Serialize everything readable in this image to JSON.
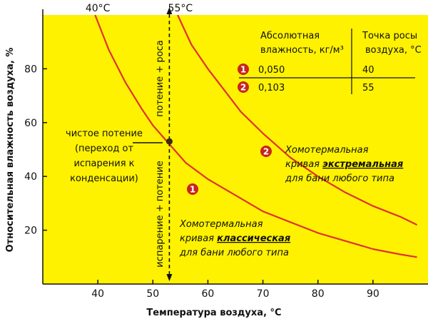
{
  "chart_data": {
    "type": "line",
    "xlabel": "Температура воздуха, °С",
    "ylabel": "Относительная влажность воздуха, %",
    "xlim": [
      30,
      100
    ],
    "ylim": [
      0,
      100
    ],
    "x_ticks": [
      "40",
      "50",
      "60",
      "70",
      "80",
      "90"
    ],
    "y_ticks": [
      "20",
      "40",
      "60",
      "80"
    ],
    "grid": false,
    "colors": {
      "background": "#fff200",
      "curve": "#e0322b",
      "badge": "#c7251d"
    },
    "series": [
      {
        "id": "1",
        "x": [
          39.5,
          42,
          45,
          48,
          50,
          53,
          56,
          60,
          65,
          70,
          75,
          80,
          85,
          90,
          95,
          98
        ],
        "y": [
          100,
          87,
          75,
          65,
          59,
          52,
          45,
          39,
          33,
          27,
          23,
          19,
          16,
          13,
          11,
          10
        ]
      },
      {
        "id": "2",
        "x": [
          54.5,
          57,
          60,
          63,
          66,
          70,
          75,
          80,
          85,
          90,
          95,
          98
        ],
        "y": [
          100,
          89,
          80,
          72,
          64,
          56,
          47,
          40,
          34,
          29,
          25,
          22
        ]
      }
    ],
    "top_markers": [
      {
        "x": 40,
        "label": "40°С"
      },
      {
        "x": 55,
        "label": "55°С"
      }
    ],
    "dashed_line": {
      "x": 53,
      "label_lower": "испарение + потение",
      "label_upper": "потение + роса"
    },
    "point": {
      "x": 53,
      "y": 53
    },
    "point_note": [
      "чистое потение",
      "(переход от",
      "испарения к",
      "конденсации)"
    ],
    "table": {
      "col1_header": [
        "Абсолютная",
        "влажность, кг/м³"
      ],
      "col2_header": [
        "Точка росы",
        "воздуха, °С"
      ],
      "rows": [
        {
          "badge": "1",
          "abs": "0,050",
          "dew": "40"
        },
        {
          "badge": "2",
          "abs": "0,103",
          "dew": "55"
        }
      ]
    },
    "curve_labels": [
      {
        "badge": "1",
        "line1": "Хомотермальная",
        "line2_pre": "кривая ",
        "line2_bold": "классическая",
        "line3": "для бани любого типа"
      },
      {
        "badge": "2",
        "line1": "Хомотермальная",
        "line2_pre": "кривая ",
        "line2_bold": "экстремальная",
        "line3": "для бани любого типа"
      }
    ]
  }
}
